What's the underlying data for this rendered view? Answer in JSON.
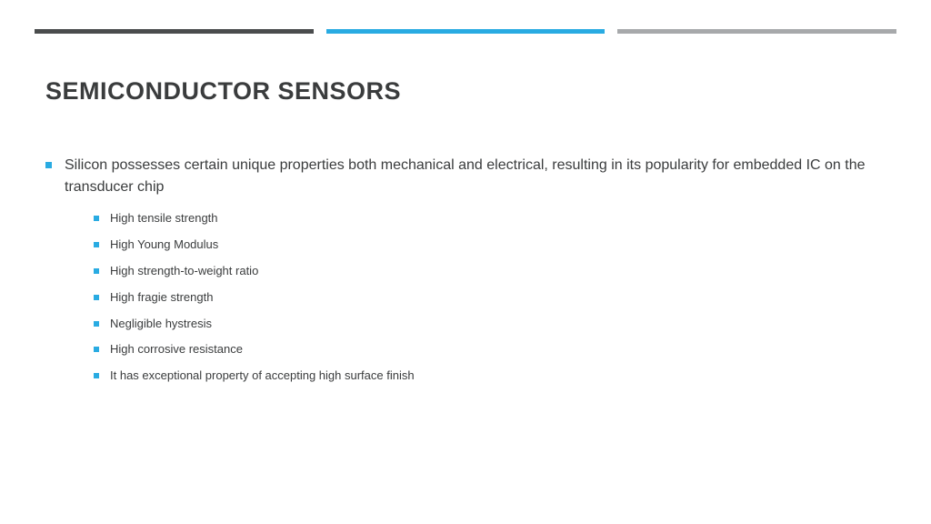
{
  "topBars": {
    "colors": [
      "#4a4c4d",
      "#29abe2",
      "#a7a9ab"
    ]
  },
  "title": "SEMICONDUCTOR SENSORS",
  "titleColor": "#3a3c3d",
  "bulletColor": "#29abe2",
  "mainBullet": {
    "text": "Silicon possesses certain unique properties both mechanical and electrical, resulting in its popularity for embedded IC on the transducer chip"
  },
  "subBullets": [
    "High tensile strength",
    "High Young Modulus",
    "High strength-to-weight ratio",
    "High fragie strength",
    "Negligible hystresis",
    "High corrosive resistance",
    "It has exceptional property of accepting high surface finish"
  ]
}
